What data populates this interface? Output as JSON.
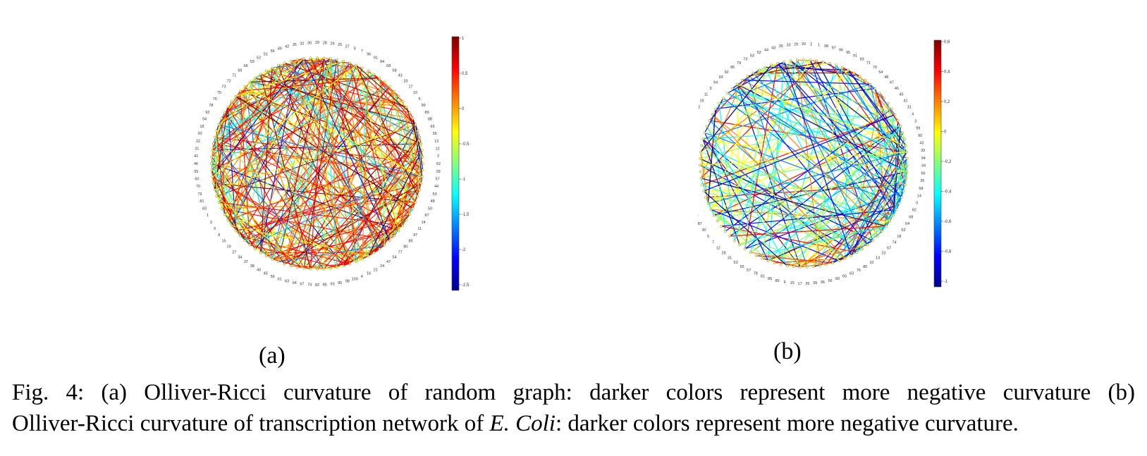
{
  "figure": {
    "panels": [
      {
        "id": "a",
        "label": "(a)",
        "node_labels": [
          "29",
          "28",
          "26",
          "25",
          "27",
          "9",
          "7",
          "96",
          "91",
          "84",
          "68",
          "58",
          "43",
          "33",
          "17",
          "10",
          "5",
          "99",
          "89",
          "88",
          "65",
          "36",
          "13",
          "12",
          "2",
          "62",
          "39",
          "57",
          "44",
          "53",
          "48",
          "50",
          "87",
          "14",
          "11",
          "97",
          "85",
          "80",
          "77",
          "54",
          "47",
          "24",
          "21",
          "16",
          "4",
          "100",
          "98",
          "95",
          "93",
          "86",
          "82",
          "74",
          "67",
          "64",
          "63",
          "61",
          "56",
          "45",
          "40",
          "38",
          "37",
          "34",
          "27",
          "19",
          "15",
          "8",
          "6",
          "3",
          "1",
          "83",
          "81",
          "79",
          "70",
          "60",
          "55",
          "46",
          "41",
          "31",
          "22",
          "20",
          "18",
          "94",
          "92",
          "78",
          "76",
          "75",
          "73",
          "72",
          "71",
          "69",
          "66",
          "59",
          "52",
          "51",
          "56",
          "49",
          "42",
          "35",
          "32",
          "30"
        ],
        "colorbar_ticks": [
          "1",
          "0,5",
          "0",
          "-0,5",
          "-1",
          "-1,5",
          "-2",
          "-2,5"
        ],
        "edge_count": 360
      },
      {
        "id": "b",
        "label": "(b)",
        "node_labels": [
          "20",
          "2",
          "1",
          "98",
          "97",
          "96",
          "95",
          "91",
          "83",
          "71",
          "70",
          "54",
          "48",
          "47",
          "46",
          "45",
          "41",
          "31",
          "4",
          "3",
          "99",
          "90",
          "43",
          "33",
          "94",
          "34",
          "66",
          "35",
          "58",
          "14",
          "0",
          "92",
          "68",
          "64",
          "52",
          "18",
          "74",
          "67",
          "23",
          "13",
          "10",
          "80",
          "76",
          "63",
          "65",
          "60",
          "56",
          "36",
          "39",
          "26",
          "17",
          "15",
          "6",
          "89",
          "86",
          "81",
          "78",
          "57",
          "55",
          "53",
          "31",
          "28",
          "12",
          "7",
          "5",
          "30",
          "87",
          "77",
          "75",
          "74",
          "72",
          "69",
          "62",
          "61",
          "59",
          "51",
          "50",
          "40",
          "37",
          "27",
          "25",
          "24",
          "22",
          "19",
          "11",
          "9",
          "94",
          "93",
          "92",
          "85",
          "79",
          "73",
          "53",
          "52",
          "44",
          "43",
          "35",
          "33",
          "29"
        ],
        "colorbar_ticks": [
          "0,6",
          "0,4",
          "0,2",
          "0",
          "-0,2",
          "-0,4",
          "-0,6",
          "-0,8",
          "-1"
        ],
        "edge_count": 240
      }
    ],
    "colormap": [
      "#00008f",
      "#0000ff",
      "#0080ff",
      "#00ffff",
      "#80ff80",
      "#ffff00",
      "#ff8000",
      "#ff0000",
      "#800000"
    ],
    "caption": {
      "line1": "Fig. 4: (a) Olliver-Ricci curvature of random graph: darker colors represent more negative curvature (b)",
      "line2_pre": "Olliver-Ricci curvature of transcription network of ",
      "line2_italic": "E. Coli",
      "line2_post": ": darker colors represent more negative curvature."
    }
  }
}
